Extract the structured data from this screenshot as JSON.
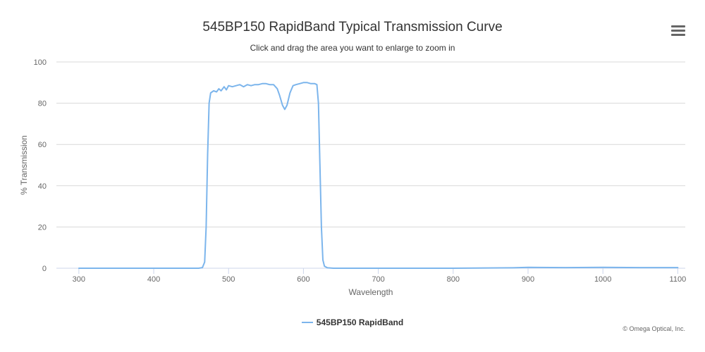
{
  "menu": {
    "icon": "hamburger-menu-icon"
  },
  "legend": {
    "label": "545BP150 RapidBand"
  },
  "credits": "© Omega Optical, Inc.",
  "colors": {
    "series": "#7cb5ec",
    "grid": "#d8d8d8",
    "axis": "#ccd6eb",
    "text": "#666666"
  },
  "chart_data": {
    "type": "line",
    "title": "545BP150 RapidBand Typical Transmission Curve",
    "subtitle": "Click and drag the area you want to enlarge to zoom in",
    "xlabel": "Wavelength",
    "ylabel": "% Transmission",
    "xlim": [
      270,
      1110
    ],
    "ylim": [
      0,
      100
    ],
    "xticks": [
      300,
      400,
      500,
      600,
      700,
      800,
      900,
      1000,
      1100
    ],
    "yticks": [
      0,
      20,
      40,
      60,
      80,
      100
    ],
    "grid": true,
    "legend_position": "bottom-center",
    "series": [
      {
        "name": "545BP150 RapidBand",
        "x": [
          300,
          400,
          460,
          465,
          468,
          470,
          472,
          474,
          476,
          480,
          484,
          487,
          490,
          494,
          497,
          500,
          505,
          510,
          515,
          520,
          525,
          530,
          535,
          540,
          545,
          550,
          555,
          560,
          565,
          568,
          572,
          575,
          578,
          582,
          586,
          590,
          595,
          600,
          605,
          610,
          615,
          618,
          620,
          622,
          624,
          626,
          628,
          632,
          640,
          700,
          800,
          880,
          900,
          950,
          1000,
          1050,
          1100
        ],
        "y": [
          0,
          0,
          0,
          0.3,
          3,
          20,
          55,
          80,
          85,
          86,
          85.5,
          87,
          86,
          88,
          86.5,
          88.5,
          88,
          88.5,
          89,
          88,
          89,
          88.5,
          89,
          89,
          89.5,
          89.5,
          89,
          89,
          87,
          84,
          79,
          77,
          79,
          85,
          88.5,
          89,
          89.5,
          90,
          90,
          89.5,
          89.5,
          89,
          80,
          50,
          20,
          4,
          1,
          0.2,
          0,
          0,
          0,
          0.2,
          0.4,
          0.3,
          0.4,
          0.3,
          0.3
        ]
      }
    ]
  }
}
